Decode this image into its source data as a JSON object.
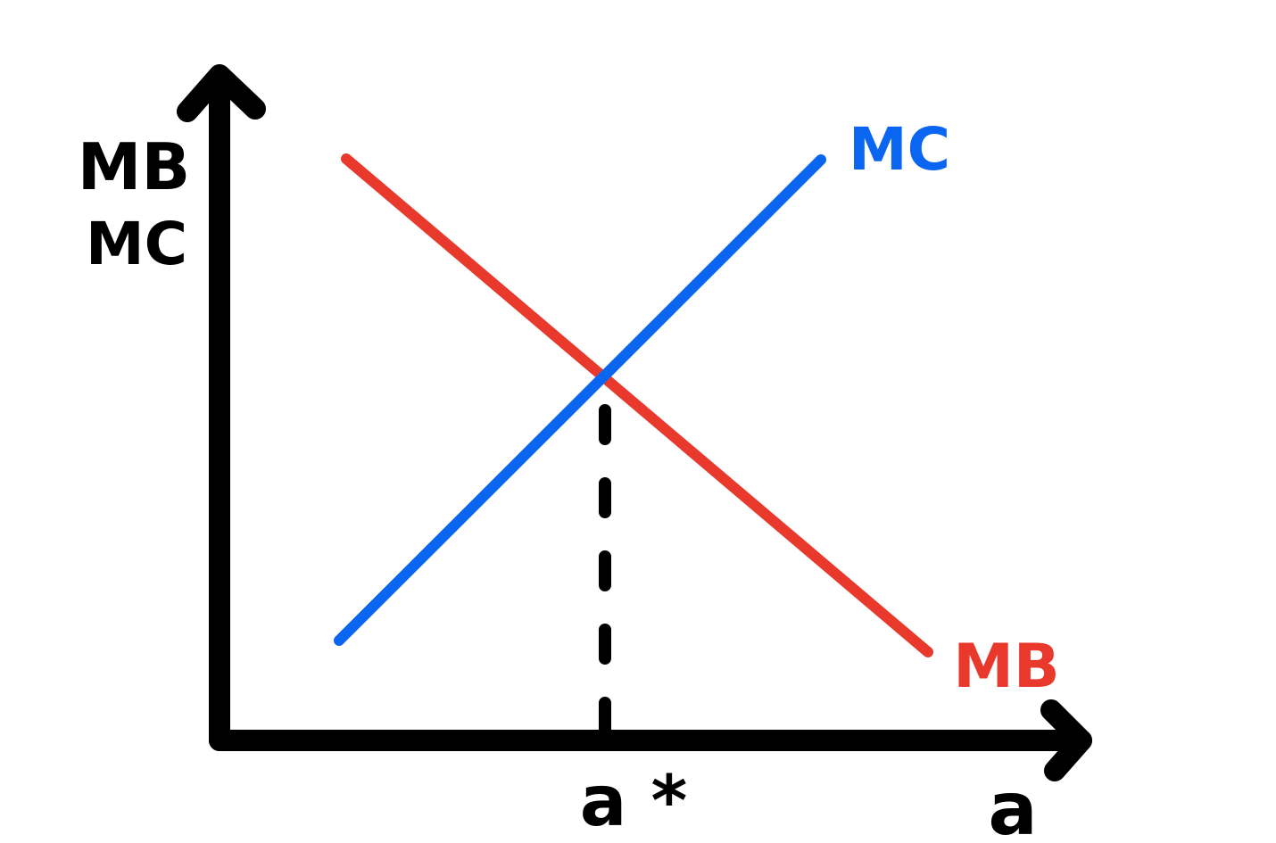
{
  "axes": {
    "y_label_line1": "MB",
    "y_label_line2": "MC",
    "x_label": "a"
  },
  "curves": {
    "mc": {
      "label": "MC",
      "color": "#0a66f0",
      "slope": "upward"
    },
    "mb": {
      "label": "MB",
      "color": "#e8392c",
      "slope": "downward"
    }
  },
  "equilibrium": {
    "label": "a *",
    "guide": "dashed vertical line from intersection to x-axis"
  },
  "colors": {
    "axis": "#000000",
    "background": "#ffffff"
  }
}
